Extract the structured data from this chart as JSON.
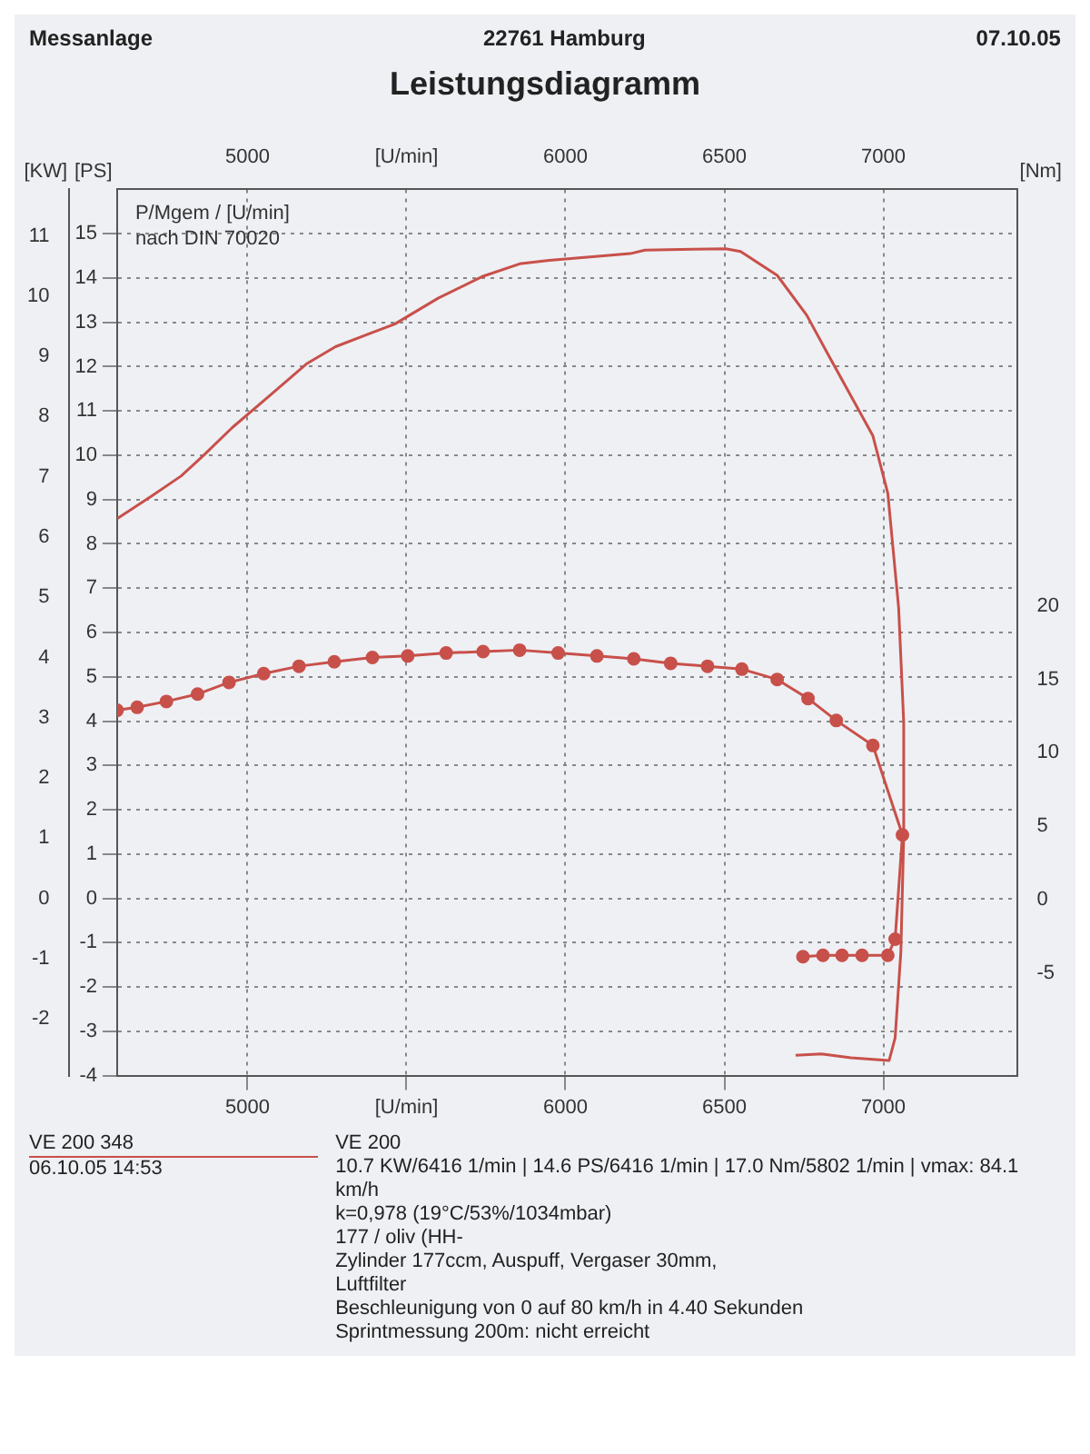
{
  "chart_data": {
    "type": "line",
    "title": "Leistungsdiagramm",
    "subtitle": "22761 Hamburg",
    "annotations": [
      "Messanlage",
      "07.10.05",
      "P/Mgem / [U/min]",
      "nach DIN 70020",
      "VE 200 348",
      "06.10.05  14:53",
      "VE 200",
      "10.7 KW/6416 1/min  |  14.6 PS/6416 1/min  |  17.0 Nm/5802 1/min | vmax: 84.1 km/h",
      "k=0,978 (19°C/53%/1034mbar)",
      "177 / oliv  (HH-",
      "Zylinder 177ccm, Auspuff, Vergaser 30mm,",
      "Luftfilter",
      "Beschleunigung von 0 auf 80 km/h in 4.40 Sekunden",
      "Sprintmessung 200m: nicht erreicht"
    ],
    "ylabel": "[PS]",
    "y2label": "[Nm]",
    "y3label": "[KW]",
    "xlim": [
      4590,
      7420
    ],
    "xticks": [
      5000,
      {
        "value": 5500,
        "label": "[U/min]"
      },
      6000,
      6500,
      7000
    ],
    "x2lim": [
      4590,
      7420
    ],
    "x2ticks": [
      5000,
      {
        "value": 5500,
        "label": "[U/min]"
      },
      6000,
      6500,
      7000
    ],
    "ylim": [
      -4,
      16
    ],
    "yticks": [
      -4,
      -3,
      -2,
      -1,
      0,
      1,
      2,
      3,
      4,
      5,
      6,
      7,
      8,
      9,
      10,
      11,
      12,
      13,
      14,
      15
    ],
    "y2lim": [
      -12,
      48.4
    ],
    "y2ticks": [
      -5,
      0,
      5,
      10,
      15,
      20
    ],
    "y3lim": [
      -2.94,
      11.77
    ],
    "y3ticks": [
      -2,
      -1,
      0,
      1,
      2,
      3,
      4,
      5,
      6,
      7,
      8,
      9,
      10,
      11
    ],
    "grid": true,
    "series": [
      {
        "color": "#c8504a",
        "marker": "none",
        "x": [
          4590,
          4699,
          4791,
          4861,
          4953,
          5069,
          5185,
          5277,
          5393,
          5463,
          5601,
          5741,
          5856,
          5949,
          6204,
          6250,
          6400,
          6504,
          6551,
          6666,
          6759,
          6828,
          6967,
          7014,
          7048,
          7064,
          7064,
          7055,
          7037,
          7018,
          6898,
          6805,
          6724
        ],
        "values": [
          8.57,
          9.08,
          9.53,
          9.99,
          10.63,
          11.34,
          12.06,
          12.45,
          12.77,
          12.96,
          13.55,
          14.04,
          14.32,
          14.4,
          14.55,
          14.63,
          14.65,
          14.66,
          14.6,
          14.06,
          13.16,
          12.25,
          10.44,
          9.14,
          6.56,
          3.97,
          1.41,
          -1.21,
          -3.15,
          -3.66,
          -3.6,
          -3.51,
          -3.54
        ]
      },
      {
        "axis": "y2",
        "color": "#c8504a",
        "marker": "circle",
        "x": [
          4590,
          4653,
          4745,
          4843,
          4942,
          5051,
          5162,
          5273,
          5393,
          5504,
          5625,
          5741,
          5856,
          5977,
          6099,
          6215,
          6331,
          6447,
          6555,
          6666,
          6763,
          6852,
          6967,
          7060,
          7037,
          7014,
          6933,
          6870,
          6810,
          6747
        ],
        "values": [
          12.9,
          13.1,
          13.5,
          14.0,
          14.8,
          15.4,
          15.9,
          16.2,
          16.5,
          16.6,
          16.8,
          16.9,
          17.0,
          16.8,
          16.6,
          16.4,
          16.1,
          15.9,
          15.7,
          15.0,
          13.7,
          12.2,
          10.5,
          4.4,
          -2.7,
          -3.8,
          -3.8,
          -3.8,
          -3.8,
          -3.9
        ]
      }
    ]
  }
}
